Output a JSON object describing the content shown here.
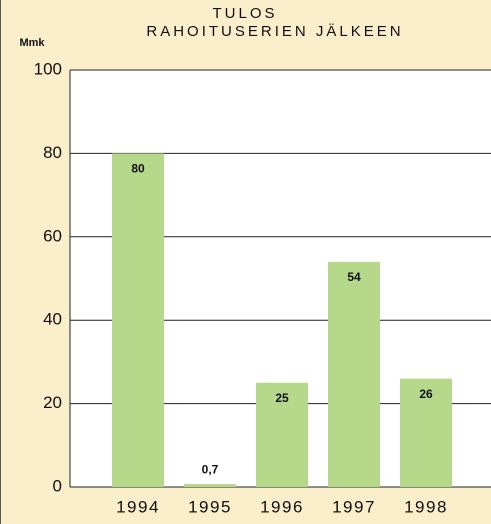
{
  "chart_data": {
    "type": "bar",
    "title": "TULOS",
    "subtitle": "RAHOITUSERIEN JÄLKEEN",
    "y_label": "Mmk",
    "categories": [
      "1994",
      "1995",
      "1996",
      "1997",
      "1998"
    ],
    "values": [
      80,
      0.7,
      25,
      54,
      26
    ],
    "value_labels": [
      "80",
      "0,7",
      "25",
      "54",
      "26"
    ],
    "color": "#b5d88a",
    "ylim": [
      0,
      100
    ],
    "yticks": [
      0,
      20,
      40,
      60,
      80,
      100
    ],
    "grid": true
  }
}
